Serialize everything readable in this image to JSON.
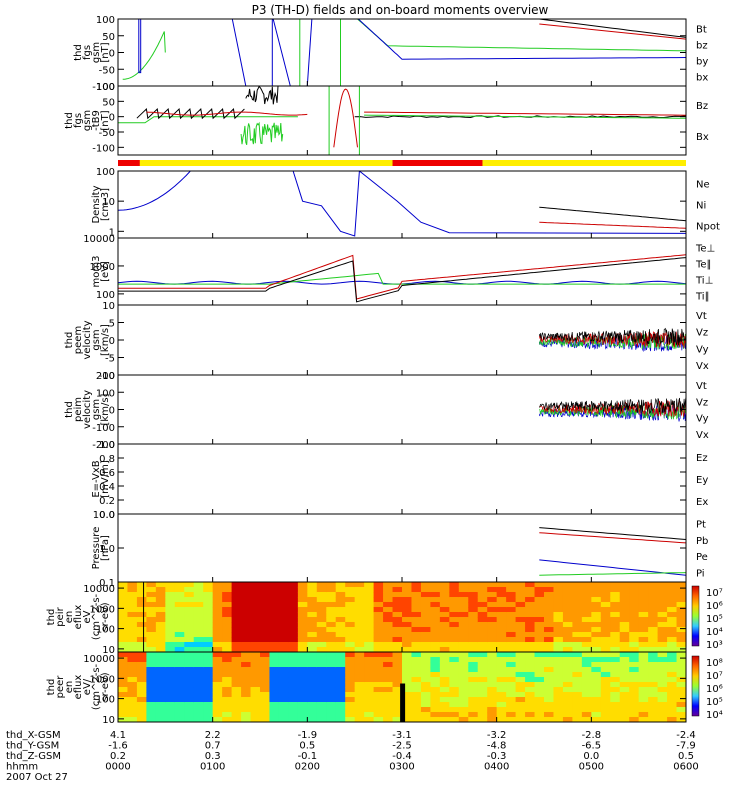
{
  "title": "P3 (TH-D) fields and on-board moments overview",
  "colors": {
    "black": "#000000",
    "red": "#cc0000",
    "green": "#22cc22",
    "blue": "#0000cc",
    "bar_yellow": "#ffee00",
    "bar_red": "#ee0000"
  },
  "chart_data": [
    {
      "id": "fgs",
      "type": "line",
      "ylabel": [
        "thd",
        "fgs",
        "gsm",
        "[nT]"
      ],
      "ylim": [
        -100,
        100
      ],
      "log": false,
      "ticks": [
        "100",
        "50",
        "0",
        "-50",
        "-100"
      ],
      "tickvals": [
        100,
        50,
        0,
        -50,
        -100
      ],
      "legend": [
        {
          "name": "Bt",
          "color": "black"
        },
        {
          "name": "bz",
          "color": "red"
        },
        {
          "name": "by",
          "color": "green"
        },
        {
          "name": "bx",
          "color": "blue"
        }
      ]
    },
    {
      "id": "fgs_b",
      "type": "line",
      "ylabel": [
        "thd",
        "fgs",
        "gsm",
        "-tB9",
        "[nT]"
      ],
      "ylim": [
        -125,
        100
      ],
      "log": false,
      "ticks": [
        "100",
        "50",
        "0",
        "-50",
        "-100"
      ],
      "tickvals": [
        100,
        50,
        0,
        -50,
        -100
      ],
      "legend": [
        {
          "name": "Bz",
          "color": "red"
        },
        {
          "name": "Bx",
          "color": "green"
        }
      ]
    },
    {
      "id": "density",
      "type": "line",
      "ylabel": [
        "Density",
        "[cm-3]"
      ],
      "ylim": [
        0.6,
        100
      ],
      "log": true,
      "ticks": [
        "100",
        "10",
        "1"
      ],
      "tickvals": [
        100,
        10,
        1
      ],
      "legend": [
        {
          "name": "Ne",
          "color": "red"
        },
        {
          "name": "Ni",
          "color": "black"
        },
        {
          "name": "Npot",
          "color": "blue"
        }
      ]
    },
    {
      "id": "temp",
      "type": "line",
      "ylabel": [
        "mom3",
        "[eV]"
      ],
      "ylim": [
        40,
        10000
      ],
      "log": true,
      "ticks": [
        "10000",
        "1000",
        "100"
      ],
      "tickvals": [
        10000,
        1000,
        100
      ],
      "legend": [
        {
          "name": "Te⊥",
          "color": "red"
        },
        {
          "name": "Te∥",
          "color": "black"
        },
        {
          "name": "Ti⊥",
          "color": "blue"
        },
        {
          "name": "Ti∥",
          "color": "green"
        }
      ]
    },
    {
      "id": "vel_e",
      "type": "line",
      "ylabel": [
        "thd",
        "peem",
        "velocity",
        "gsm",
        "[km/s]"
      ],
      "ylim": [
        -10,
        10
      ],
      "log": false,
      "ticks": [
        "10",
        "5",
        "0",
        "-5",
        "-10"
      ],
      "tickvals": [
        10,
        5,
        0,
        -5,
        -10
      ],
      "legend": [
        {
          "name": "Vt",
          "color": "black"
        },
        {
          "name": "Vz",
          "color": "red"
        },
        {
          "name": "Vy",
          "color": "green"
        },
        {
          "name": "Vx",
          "color": "blue"
        }
      ]
    },
    {
      "id": "vel_i",
      "type": "line",
      "ylabel": [
        "thd",
        "peim",
        "velocity",
        "gsm",
        "[km/s]"
      ],
      "ylim": [
        -200,
        200
      ],
      "log": false,
      "ticks": [
        "200",
        "100",
        "0",
        "-100",
        "-200"
      ],
      "tickvals": [
        200,
        100,
        0,
        -100,
        -200
      ],
      "legend": [
        {
          "name": "Vt",
          "color": "black"
        },
        {
          "name": "Vz",
          "color": "red"
        },
        {
          "name": "Vy",
          "color": "green"
        },
        {
          "name": "Vx",
          "color": "blue"
        }
      ]
    },
    {
      "id": "efield",
      "type": "line",
      "ylabel": [
        "E=-VxB",
        "[mV/m]"
      ],
      "ylim": [
        0,
        1
      ],
      "log": false,
      "ticks": [
        "1.0",
        "0.8",
        "0.6",
        "0.4",
        "0.2",
        "0.0"
      ],
      "tickvals": [
        1,
        0.8,
        0.6,
        0.4,
        0.2,
        0
      ],
      "legend": [
        {
          "name": "Ez",
          "color": "red"
        },
        {
          "name": "Ey",
          "color": "green"
        },
        {
          "name": "Ex",
          "color": "blue"
        }
      ]
    },
    {
      "id": "pressure",
      "type": "line",
      "ylabel": [
        "Pressure",
        "[nPa]"
      ],
      "ylim": [
        0.1,
        10
      ],
      "log": true,
      "ticks": [
        "10.0",
        "1.0",
        "0.1"
      ],
      "tickvals": [
        10,
        1,
        0.1
      ],
      "legend": [
        {
          "name": "Pt",
          "color": "black"
        },
        {
          "name": "Pb",
          "color": "red"
        },
        {
          "name": "Pe",
          "color": "green"
        },
        {
          "name": "Pi",
          "color": "blue"
        }
      ]
    },
    {
      "id": "ion_spec",
      "type": "heatmap",
      "ylabel": [
        "thd",
        "peir",
        "en",
        "eflux",
        "eV",
        "(cm^2-s-",
        "sr-eV)"
      ],
      "ylim": [
        7,
        20000
      ],
      "log": true,
      "ticks": [
        "10000",
        "1000",
        "100",
        "10"
      ],
      "tickvals": [
        10000,
        1000,
        100,
        10
      ],
      "colorbar": [
        "10⁷",
        "10⁶",
        "10⁵",
        "10⁴",
        "10³"
      ]
    },
    {
      "id": "elec_spec",
      "type": "heatmap",
      "ylabel": [
        "thd",
        "peer",
        "en",
        "eflux",
        "eV/",
        "(cm^2-s-",
        "sr-eV)"
      ],
      "ylim": [
        7,
        20000
      ],
      "log": true,
      "ticks": [
        "10000",
        "1000",
        "100",
        "10"
      ],
      "tickvals": [
        10000,
        1000,
        100,
        10
      ],
      "colorbar": [
        "10⁸",
        "10⁷",
        "10⁶",
        "10⁵",
        "10⁴"
      ]
    }
  ],
  "xaxis": {
    "rows": [
      {
        "label": "thd_X-GSM",
        "values": [
          "4.1",
          "2.2",
          "-1.9",
          "-3.1",
          "-3.2",
          "-2.8",
          "-2.4"
        ]
      },
      {
        "label": "thd_Y-GSM",
        "values": [
          "-1.6",
          "0.7",
          "0.5",
          "-2.5",
          "-4.8",
          "-6.5",
          "-7.9"
        ]
      },
      {
        "label": "thd_Z-GSM",
        "values": [
          "0.2",
          "0.3",
          "-0.1",
          "-0.4",
          "-0.3",
          "0.0",
          "0.5"
        ]
      },
      {
        "label": "hhmm",
        "values": [
          "0000",
          "0100",
          "0200",
          "0300",
          "0400",
          "0500",
          "0600"
        ]
      }
    ],
    "date": "2007 Oct 27"
  }
}
